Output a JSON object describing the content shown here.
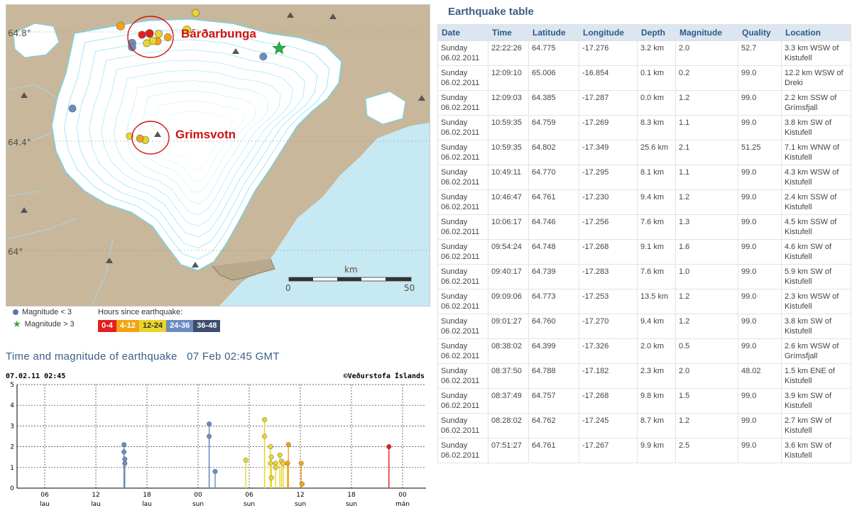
{
  "map": {
    "lat_labels": [
      "64.8°",
      "64.4°",
      "64°"
    ],
    "regions": [
      {
        "name": "Bárðarbunga"
      },
      {
        "name": "Grimsvotn"
      }
    ],
    "scale": {
      "unit": "km",
      "start": "0",
      "end": "50"
    },
    "quakes": [
      {
        "lon": -17.276,
        "lat": 64.775,
        "mag": 2.0,
        "hours": "0-4"
      },
      {
        "lon": -17.295,
        "lat": 64.77,
        "mag": 1.1,
        "hours": "0-4"
      },
      {
        "lon": -17.349,
        "lat": 64.802,
        "mag": 2.1,
        "hours": "4-12"
      },
      {
        "lon": -17.23,
        "lat": 64.761,
        "mag": 1.2,
        "hours": "4-12"
      },
      {
        "lon": -17.256,
        "lat": 64.746,
        "mag": 1.3,
        "hours": "4-12"
      },
      {
        "lon": -17.268,
        "lat": 64.748,
        "mag": 1.6,
        "hours": "12-24"
      },
      {
        "lon": -17.283,
        "lat": 64.739,
        "mag": 1.0,
        "hours": "12-24"
      },
      {
        "lon": -17.253,
        "lat": 64.773,
        "mag": 1.2,
        "hours": "12-24"
      },
      {
        "lon": -17.182,
        "lat": 64.788,
        "mag": 2.0,
        "hours": "12-24"
      },
      {
        "lon": -17.287,
        "lat": 64.385,
        "mag": 1.2,
        "hours": "12-24"
      },
      {
        "lon": -17.326,
        "lat": 64.399,
        "mag": 0.5,
        "hours": "12-24"
      },
      {
        "lon": -17.3,
        "lat": 64.39,
        "mag": 1.0,
        "hours": "4-12"
      },
      {
        "lon": -17.16,
        "lat": 64.85,
        "mag": 1.0,
        "hours": "12-24"
      },
      {
        "lon": -17.32,
        "lat": 64.74,
        "mag": 1.5,
        "hours": "24-36"
      },
      {
        "lon": -17.32,
        "lat": 64.725,
        "mag": 1.5,
        "hours": "24-36"
      },
      {
        "lon": -16.99,
        "lat": 64.69,
        "mag": 1.0,
        "hours": "24-36"
      },
      {
        "lon": -17.47,
        "lat": 64.5,
        "mag": 1.0,
        "hours": "24-36"
      },
      {
        "lon": -16.52,
        "lat": 65.0,
        "mag": 1.0,
        "hours": "24-36"
      }
    ],
    "big_quake": {
      "lon": -16.95,
      "lat": 64.72
    }
  },
  "legend": {
    "mag_small": "Magnitude < 3",
    "mag_large": "Magnitude > 3",
    "hours_title": "Hours since earthquake:",
    "hours": [
      {
        "label": "0-4",
        "color": "#e41e1e"
      },
      {
        "label": "4-12",
        "color": "#f3a312"
      },
      {
        "label": "12-24",
        "color": "#e8d62a"
      },
      {
        "label": "24-36",
        "color": "#6a8cc2"
      },
      {
        "label": "36-48",
        "color": "#3e4d6e"
      }
    ]
  },
  "plot": {
    "title": "Time and magnitude of earthquake",
    "time": "07 Feb 02:45 GMT",
    "stamp": "07.02.11 02:45",
    "credit": "©Veðurstofa Íslands",
    "y_ticks": [
      "0",
      "1",
      "2",
      "3",
      "4",
      "5"
    ],
    "x_ticks": [
      {
        "t": 6,
        "top": "06",
        "bot": "lau"
      },
      {
        "t": 12,
        "top": "12",
        "bot": "lau"
      },
      {
        "t": 18,
        "top": "18",
        "bot": "lau"
      },
      {
        "t": 24,
        "top": "00",
        "bot": "sun"
      },
      {
        "t": 30,
        "top": "06",
        "bot": "sun"
      },
      {
        "t": 36,
        "top": "12",
        "bot": "sun"
      },
      {
        "t": 42,
        "top": "18",
        "bot": "sun"
      },
      {
        "t": 48,
        "top": "00",
        "bot": "mán"
      }
    ]
  },
  "chart_data": {
    "type": "scatter",
    "title": "Time and magnitude of earthquake 07 Feb 02:45 GMT",
    "xlabel": "",
    "ylabel": "",
    "ylim": [
      0,
      5
    ],
    "xlim": [
      2.75,
      50.75
    ],
    "x_unit": "hours from 05.02.11 00:00",
    "points": [
      {
        "t": 15.3,
        "mag": 2.1,
        "hours": "24-36"
      },
      {
        "t": 15.3,
        "mag": 1.75,
        "hours": "24-36"
      },
      {
        "t": 15.4,
        "mag": 1.4,
        "hours": "24-36"
      },
      {
        "t": 15.4,
        "mag": 1.2,
        "hours": "24-36"
      },
      {
        "t": 25.3,
        "mag": 3.1,
        "hours": "24-36"
      },
      {
        "t": 25.3,
        "mag": 2.5,
        "hours": "24-36"
      },
      {
        "t": 26.0,
        "mag": 0.8,
        "hours": "24-36"
      },
      {
        "t": 29.6,
        "mag": 1.35,
        "hours": "12-24"
      },
      {
        "t": 31.8,
        "mag": 3.3,
        "hours": "12-24"
      },
      {
        "t": 31.8,
        "mag": 2.5,
        "hours": "12-24"
      },
      {
        "t": 32.5,
        "mag": 2.0,
        "hours": "12-24"
      },
      {
        "t": 32.5,
        "mag": 1.2,
        "hours": "12-24"
      },
      {
        "t": 32.6,
        "mag": 1.5,
        "hours": "12-24"
      },
      {
        "t": 32.6,
        "mag": 0.5,
        "hours": "12-24"
      },
      {
        "t": 33.1,
        "mag": 1.2,
        "hours": "12-24"
      },
      {
        "t": 33.1,
        "mag": 1.0,
        "hours": "12-24"
      },
      {
        "t": 33.6,
        "mag": 1.6,
        "hours": "12-24"
      },
      {
        "t": 33.8,
        "mag": 1.3,
        "hours": "12-24"
      },
      {
        "t": 34.0,
        "mag": 1.2,
        "hours": "12-24"
      },
      {
        "t": 34.6,
        "mag": 2.1,
        "hours": "4-12"
      },
      {
        "t": 34.5,
        "mag": 1.2,
        "hours": "4-12"
      },
      {
        "t": 36.1,
        "mag": 1.2,
        "hours": "4-12"
      },
      {
        "t": 36.2,
        "mag": 0.2,
        "hours": "4-12"
      },
      {
        "t": 46.4,
        "mag": 2.0,
        "hours": "0-4"
      }
    ]
  },
  "table": {
    "title": "Earthquake table",
    "columns": [
      "Date",
      "Time",
      "Latitude",
      "Longitude",
      "Depth",
      "Magnitude",
      "Quality",
      "Location"
    ],
    "rows": [
      {
        "day": "Sunday",
        "date": "06.02.2011",
        "time": "22:22:26",
        "lat": "64.775",
        "lon": "-17.276",
        "depth": "3.2 km",
        "mag": "2.0",
        "quality": "52.7",
        "location": "3.3 km WSW of Kistufell"
      },
      {
        "day": "Sunday",
        "date": "06.02.2011",
        "time": "12:09:10",
        "lat": "65.006",
        "lon": "-16.854",
        "depth": "0.1 km",
        "mag": "0.2",
        "quality": "99.0",
        "location": "12.2 km WSW of Dreki"
      },
      {
        "day": "Sunday",
        "date": "06.02.2011",
        "time": "12:09:03",
        "lat": "64.385",
        "lon": "-17.287",
        "depth": "0.0 km",
        "mag": "1.2",
        "quality": "99.0",
        "location": "2.2 km SSW of Grímsfjall",
        "mark": true
      },
      {
        "day": "Sunday",
        "date": "06.02.2011",
        "time": "10:59:35",
        "lat": "64.759",
        "lon": "-17.269",
        "depth": "8.3 km",
        "mag": "1.1",
        "quality": "99.0",
        "location": "3.8 km SW of Kistufell"
      },
      {
        "day": "Sunday",
        "date": "06.02.2011",
        "time": "10:59:35",
        "lat": "64.802",
        "lon": "-17.349",
        "depth": "25.6 km",
        "mag": "2.1",
        "quality": "51.25",
        "location": "7.1 km WNW of Kistufell"
      },
      {
        "day": "Sunday",
        "date": "06.02.2011",
        "time": "10:49:11",
        "lat": "64.770",
        "lon": "-17.295",
        "depth": "8.1 km",
        "mag": "1.1",
        "quality": "99.0",
        "location": "4.3 km WSW of Kistufell"
      },
      {
        "day": "Sunday",
        "date": "06.02.2011",
        "time": "10:46:47",
        "lat": "64.761",
        "lon": "-17.230",
        "depth": "9.4 km",
        "mag": "1.2",
        "quality": "99.0",
        "location": "2.4 km SSW of Kistufell"
      },
      {
        "day": "Sunday",
        "date": "06.02.2011",
        "time": "10:06:17",
        "lat": "64.746",
        "lon": "-17.256",
        "depth": "7.6 km",
        "mag": "1.3",
        "quality": "99.0",
        "location": "4.5 km SSW of Kistufell"
      },
      {
        "day": "Sunday",
        "date": "06.02.2011",
        "time": "09:54:24",
        "lat": "64.748",
        "lon": "-17.268",
        "depth": "9.1 km",
        "mag": "1.6",
        "quality": "99.0",
        "location": "4.6 km SW of Kistufell"
      },
      {
        "day": "Sunday",
        "date": "06.02.2011",
        "time": "09:40:17",
        "lat": "64.739",
        "lon": "-17.283",
        "depth": "7.6 km",
        "mag": "1.0",
        "quality": "99.0",
        "location": "5.9 km SW of Kistufell"
      },
      {
        "day": "Sunday",
        "date": "06.02.2011",
        "time": "09:09:06",
        "lat": "64.773",
        "lon": "-17.253",
        "depth": "13.5 km",
        "mag": "1.2",
        "quality": "99.0",
        "location": "2.3 km WSW of Kistufell"
      },
      {
        "day": "Sunday",
        "date": "06.02.2011",
        "time": "09:01:27",
        "lat": "64.760",
        "lon": "-17.270",
        "depth": "9.4 km",
        "mag": "1.2",
        "quality": "99.0",
        "location": "3.8 km SW of Kistufell"
      },
      {
        "day": "Sunday",
        "date": "06.02.2011",
        "time": "08:38:02",
        "lat": "64.399",
        "lon": "-17.326",
        "depth": "2.0 km",
        "mag": "0.5",
        "quality": "99.0",
        "location": "2.6 km WSW of Grímsfjall",
        "mark": true
      },
      {
        "day": "Sunday",
        "date": "06.02.2011",
        "time": "08:37:50",
        "lat": "64.788",
        "lon": "-17.182",
        "depth": "2.3 km",
        "mag": "2.0",
        "quality": "48.02",
        "location": "1.5 km ENE of Kistufell"
      },
      {
        "day": "Sunday",
        "date": "06.02.2011",
        "time": "08:37:49",
        "lat": "64.757",
        "lon": "-17.268",
        "depth": "9.8 km",
        "mag": "1.5",
        "quality": "99.0",
        "location": "3.9 km SW of Kistufell"
      },
      {
        "day": "Sunday",
        "date": "06.02.2011",
        "time": "08:28:02",
        "lat": "64.762",
        "lon": "-17.245",
        "depth": "8.7 km",
        "mag": "1.2",
        "quality": "99.0",
        "location": "2.7 km SW of Kistufell"
      },
      {
        "day": "Sunday",
        "date": "06.02.2011",
        "time": "07:51:27",
        "lat": "64.761",
        "lon": "-17.267",
        "depth": "9.9 km",
        "mag": "2.5",
        "quality": "99.0",
        "location": "3.6 km SW of Kistufell"
      }
    ]
  }
}
